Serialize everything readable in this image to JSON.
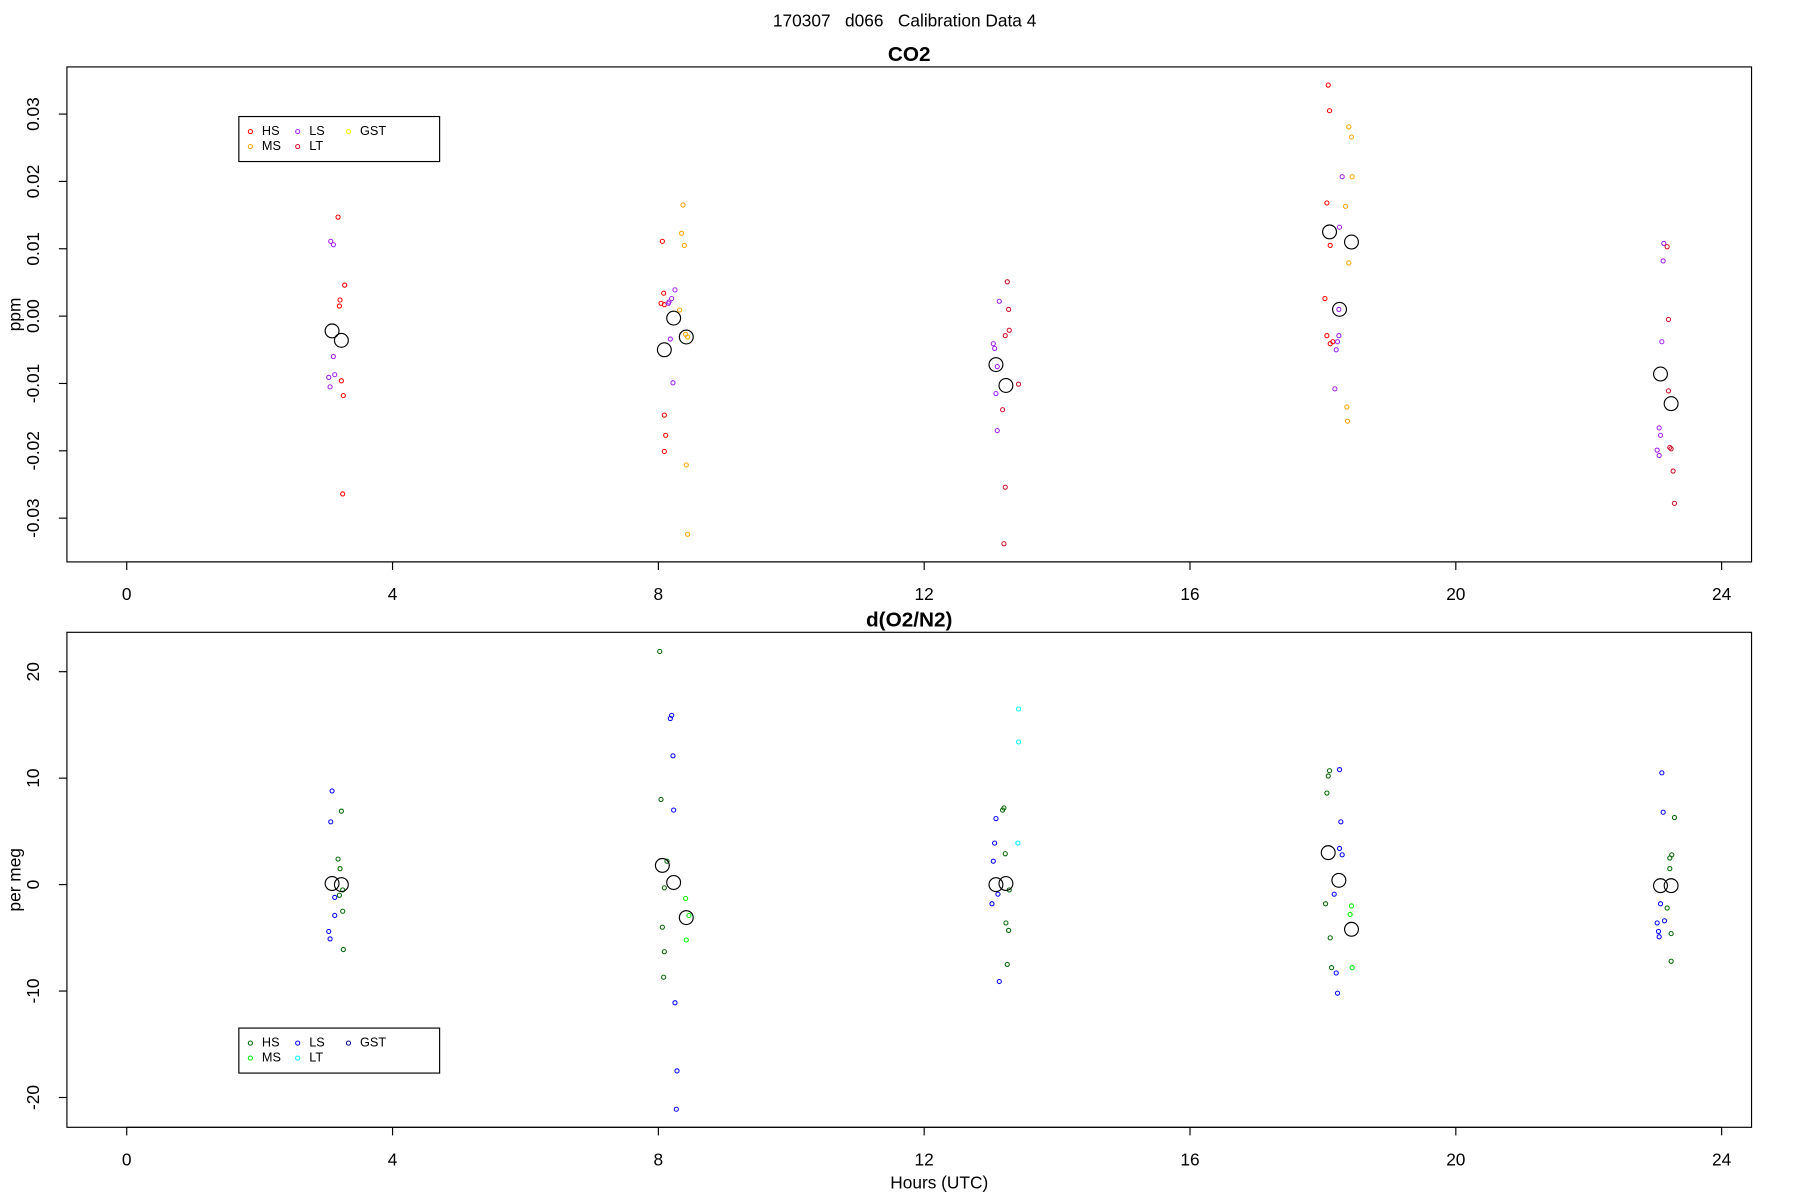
{
  "title": "170307   d066   Calibration Data 4",
  "chart_data": [
    {
      "type": "scatter",
      "title": "CO2",
      "y_label": "ppm",
      "xlim": [
        -0.9,
        24.45
      ],
      "xticks": [
        0,
        4,
        8,
        12,
        16,
        20,
        24
      ],
      "ylim": [
        -0.0365,
        0.037
      ],
      "yticks": [
        -0.03,
        -0.02,
        -0.01,
        {
          "value": 0,
          "label": "0.00"
        },
        0.01,
        0.02,
        0.03
      ],
      "legend": "top left",
      "series": [
        {
          "name": "HS",
          "color": "#ff0000",
          "x": [
            3.18,
            3.28,
            3.21,
            3.2,
            3.23,
            3.26,
            3.25,
            8.06,
            8.08,
            8.04,
            8.09,
            8.09,
            8.11,
            8.09,
            18.08,
            18.1,
            18.06,
            18.11,
            18.03,
            18.06,
            18.15,
            18.11
          ],
          "values": [
            0.0147,
            0.0046,
            0.0024,
            0.0015,
            -0.0096,
            -0.0118,
            -0.0264,
            0.0111,
            0.0034,
            0.0019,
            0.0017,
            -0.0147,
            -0.0177,
            -0.0201,
            0.0343,
            0.0305,
            0.0168,
            0.0105,
            0.0026,
            -0.0029,
            -0.0038,
            -0.0041
          ]
        },
        {
          "name": "MS",
          "color": "#ffa500",
          "x": [
            8.37,
            8.35,
            8.39,
            8.32,
            8.41,
            8.44,
            8.42,
            8.44,
            18.39,
            18.43,
            18.44,
            18.34,
            18.39,
            18.36,
            18.37
          ],
          "values": [
            0.0165,
            0.0123,
            0.0105,
            0.0009,
            -0.0027,
            -0.0031,
            -0.0221,
            -0.0324,
            0.0281,
            0.0266,
            0.0207,
            0.0163,
            0.0079,
            -0.0135,
            -0.0156
          ]
        },
        {
          "name": "LS",
          "color": "#a020f0",
          "x": [
            3.07,
            3.11,
            3.11,
            3.13,
            3.04,
            3.06,
            8.25,
            8.2,
            8.16,
            8.15,
            8.18,
            8.22,
            13.13,
            13.04,
            13.06,
            13.1,
            13.08,
            13.1,
            18.29,
            18.25,
            18.24,
            18.24,
            18.2,
            18.18,
            18.22,
            23.13,
            23.12,
            23.1,
            23.06,
            23.08,
            23.03,
            23.06
          ],
          "values": [
            0.0111,
            0.0106,
            -0.006,
            -0.0087,
            -0.0091,
            -0.0105,
            0.0039,
            0.0026,
            0.0021,
            0.0019,
            -0.0034,
            -0.0099,
            0.0022,
            -0.0041,
            -0.0048,
            -0.0075,
            -0.0115,
            -0.017,
            0.0207,
            0.0132,
            0.001,
            -0.0029,
            -0.005,
            -0.0108,
            -0.0038,
            0.0108,
            0.0082,
            -0.0038,
            -0.0166,
            -0.0177,
            -0.0199,
            -0.0207
          ]
        },
        {
          "name": "LT",
          "color": "#d0102a",
          "x": [
            13.25,
            13.27,
            13.28,
            13.22,
            13.18,
            13.22,
            13.2,
            13.42,
            23.18,
            23.2,
            23.2,
            23.22,
            23.24,
            23.27,
            23.29
          ],
          "values": [
            0.0051,
            0.001,
            -0.0021,
            -0.0029,
            -0.0139,
            -0.0254,
            -0.0338,
            -0.0101,
            0.0103,
            -0.0005,
            -0.0111,
            -0.0195,
            -0.0197,
            -0.023,
            -0.0278
          ]
        },
        {
          "name": "GST",
          "color": "#ffff00",
          "x": [],
          "values": []
        },
        {
          "color": "#000000",
          "marker": "large",
          "x": [
            3.09,
            3.23,
            8.09,
            8.23,
            8.42,
            13.08,
            13.23,
            18.1,
            18.25,
            18.43,
            23.08,
            23.24
          ],
          "values": [
            -0.0022,
            -0.0036,
            -0.005,
            -0.0003,
            -0.0031,
            -0.0072,
            -0.0103,
            0.0125,
            0.001,
            0.011,
            -0.0086,
            -0.013
          ]
        }
      ]
    },
    {
      "type": "scatter",
      "title": "d(O2/N2)",
      "y_label": "per meg",
      "x_label": "Hours (UTC)",
      "xlim": [
        -0.9,
        24.45
      ],
      "xticks": [
        0,
        4,
        8,
        12,
        16,
        20,
        24
      ],
      "ylim": [
        -22.8,
        23.7
      ],
      "yticks": [
        -20,
        -10,
        0,
        10,
        20
      ],
      "legend": "bottom left",
      "series": [
        {
          "name": "HS",
          "color": "#006400",
          "x": [
            3.23,
            3.18,
            3.21,
            3.25,
            3.2,
            3.25,
            3.26,
            8.02,
            8.04,
            8.13,
            8.09,
            8.06,
            8.09,
            8.08,
            13.2,
            13.18,
            13.22,
            13.23,
            13.27,
            13.25,
            13.28,
            18.1,
            18.08,
            18.06,
            18.04,
            18.11,
            18.13,
            23.29,
            23.25,
            23.22,
            23.22,
            23.18,
            23.24,
            23.24
          ],
          "values": [
            6.9,
            2.4,
            1.5,
            -0.5,
            -1.0,
            -2.5,
            -6.1,
            21.9,
            8.0,
            2.2,
            -0.3,
            -4.0,
            -6.3,
            -8.7,
            7.2,
            7.0,
            2.9,
            -3.6,
            -4.3,
            -7.5,
            -0.5,
            10.7,
            10.2,
            8.6,
            -1.8,
            -5.0,
            -7.8,
            6.3,
            2.8,
            2.5,
            1.5,
            -2.2,
            -4.6,
            -7.2
          ]
        },
        {
          "name": "MS",
          "color": "#00ee00",
          "x": [
            8.41,
            8.46,
            8.42,
            18.43,
            18.41,
            18.44
          ],
          "values": [
            -1.3,
            -2.9,
            -5.2,
            -2.0,
            -2.8,
            -7.8
          ]
        },
        {
          "name": "LS",
          "color": "#0000ff",
          "x": [
            3.09,
            3.07,
            3.13,
            3.13,
            3.04,
            3.06,
            8.2,
            8.18,
            8.22,
            8.23,
            8.25,
            8.28,
            8.27,
            13.08,
            13.06,
            13.04,
            13.02,
            13.11,
            13.13,
            18.25,
            18.27,
            18.29,
            18.25,
            18.17,
            18.2,
            18.22,
            23.1,
            23.12,
            23.08,
            23.14,
            23.03,
            23.05,
            23.06
          ],
          "values": [
            8.8,
            5.9,
            -1.2,
            -2.9,
            -4.4,
            -5.1,
            15.9,
            15.6,
            12.1,
            7.0,
            -11.1,
            -17.5,
            -21.1,
            6.2,
            3.9,
            2.2,
            -1.8,
            -0.9,
            -9.1,
            10.8,
            5.9,
            2.8,
            3.4,
            -0.9,
            -8.3,
            -10.2,
            10.5,
            6.8,
            -1.8,
            -3.4,
            -3.6,
            -4.4,
            -4.9
          ]
        },
        {
          "name": "LT",
          "color": "#00ffff",
          "x": [
            13.42,
            13.42,
            13.41
          ],
          "values": [
            16.5,
            13.4,
            3.9
          ]
        },
        {
          "name": "GST",
          "color": "#00008b",
          "x": [],
          "values": []
        },
        {
          "color": "#000000",
          "marker": "large",
          "x": [
            3.09,
            3.23,
            8.06,
            8.23,
            8.42,
            13.08,
            13.23,
            18.08,
            18.24,
            18.43,
            23.08,
            23.24
          ],
          "values": [
            0.1,
            0.0,
            1.8,
            0.2,
            -3.1,
            0.0,
            0.1,
            3.0,
            0.4,
            -4.2,
            -0.1,
            -0.1
          ]
        }
      ]
    }
  ]
}
